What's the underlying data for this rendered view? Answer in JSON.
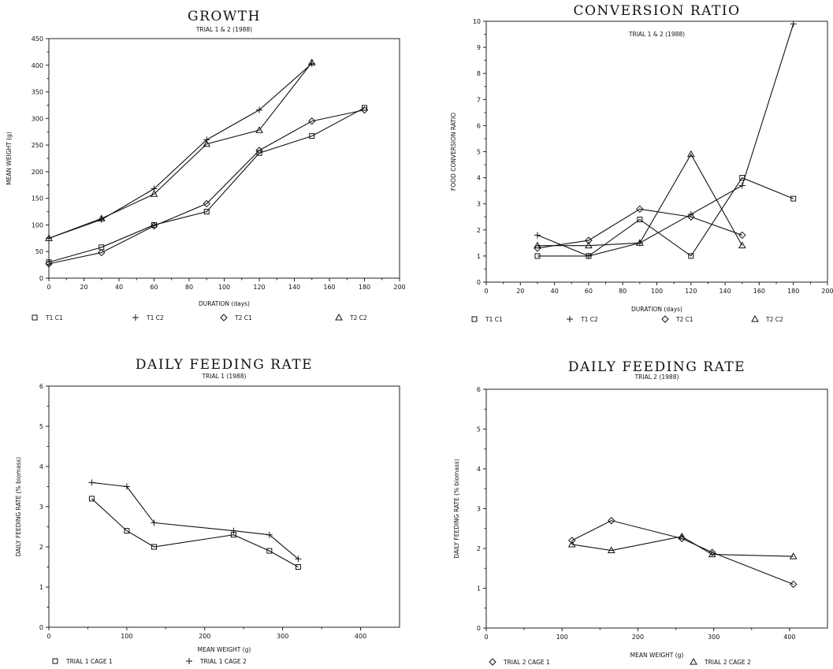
{
  "chart_data": [
    {
      "type": "line",
      "title": "GROWTH",
      "subtitle": "TRIAL 1 & 2 (1988)",
      "xlabel": "DURATION (days)",
      "ylabel": "MEAN WEIGHT (g)",
      "xlim": [
        0,
        200
      ],
      "ylim": [
        0,
        450
      ],
      "xticks": [
        0,
        20,
        40,
        60,
        80,
        100,
        120,
        140,
        160,
        180,
        200
      ],
      "yticks": [
        0,
        50,
        100,
        150,
        200,
        250,
        300,
        350,
        400,
        450
      ],
      "series": [
        {
          "name": "T1 C1",
          "marker": "□",
          "x": [
            0,
            30,
            60,
            90,
            120,
            150,
            180
          ],
          "y": [
            30,
            58,
            100,
            125,
            235,
            267,
            320
          ]
        },
        {
          "name": "T1 C2",
          "marker": "+",
          "x": [
            0,
            30,
            60,
            90,
            120,
            150
          ],
          "y": [
            75,
            110,
            168,
            260,
            316,
            403
          ]
        },
        {
          "name": "T2 C1",
          "marker": "◇",
          "x": [
            0,
            30,
            60,
            90,
            120,
            150,
            180
          ],
          "y": [
            27,
            48,
            98,
            140,
            240,
            295,
            316
          ]
        },
        {
          "name": "T2 C2",
          "marker": "△",
          "x": [
            0,
            30,
            60,
            90,
            120,
            150
          ],
          "y": [
            75,
            112,
            158,
            252,
            278,
            405
          ]
        }
      ]
    },
    {
      "type": "line",
      "title": "CONVERSION RATIO",
      "subtitle": "TRIAL 1 & 2 (1988)",
      "xlabel": "DURATION (days)",
      "ylabel": "FOOD CONVERSION RATIO",
      "xlim": [
        0,
        200
      ],
      "ylim": [
        0,
        10
      ],
      "xticks": [
        0,
        20,
        40,
        60,
        80,
        100,
        120,
        140,
        160,
        180,
        200
      ],
      "yticks": [
        0,
        1,
        2,
        3,
        4,
        5,
        6,
        7,
        8,
        9,
        10
      ],
      "series": [
        {
          "name": "T1 C1",
          "marker": "□",
          "x": [
            30,
            60,
            90,
            120,
            150,
            180
          ],
          "y": [
            1.0,
            1.0,
            2.4,
            1.0,
            4.0,
            3.2
          ]
        },
        {
          "name": "T1 C2",
          "marker": "+",
          "x": [
            30,
            60,
            90,
            120,
            150,
            180
          ],
          "y": [
            1.8,
            1.0,
            1.5,
            2.6,
            3.7,
            9.9
          ]
        },
        {
          "name": "T2 C1",
          "marker": "◇",
          "x": [
            30,
            60,
            90,
            120,
            150
          ],
          "y": [
            1.3,
            1.6,
            2.8,
            2.5,
            1.8
          ]
        },
        {
          "name": "T2 C2",
          "marker": "△",
          "x": [
            30,
            60,
            90,
            120,
            150
          ],
          "y": [
            1.4,
            1.4,
            1.5,
            4.9,
            1.4
          ]
        }
      ]
    },
    {
      "type": "line",
      "title": "DAILY FEEDING RATE",
      "subtitle": "TRIAL 1 (1988)",
      "xlabel": "MEAN WEIGHT (g)",
      "ylabel": "DAILY FEEDING RATE (% biomass)",
      "xlim": [
        0,
        450
      ],
      "ylim": [
        0,
        6
      ],
      "xticks": [
        0,
        100,
        200,
        300,
        400
      ],
      "yticks": [
        0,
        1,
        2,
        3,
        4,
        5,
        6
      ],
      "series": [
        {
          "name": "TRIAL 1 CAGE 1",
          "marker": "□",
          "x": [
            55,
            100,
            135,
            237,
            283,
            320
          ],
          "y": [
            3.2,
            2.4,
            2.0,
            2.3,
            1.9,
            1.5
          ]
        },
        {
          "name": "TRIAL 1 CAGE 2",
          "marker": "+",
          "x": [
            55,
            100,
            135,
            237,
            283,
            320
          ],
          "y": [
            3.6,
            3.5,
            2.6,
            2.4,
            2.3,
            1.7
          ]
        }
      ]
    },
    {
      "type": "line",
      "title": "DAILY FEEDING RATE",
      "subtitle": "TRIAL 2 (1988)",
      "xlabel": "MEAN WEIGHT (g)",
      "ylabel": "DAILY FEEDING RATE (% biomass)",
      "xlim": [
        0,
        450
      ],
      "ylim": [
        0,
        6
      ],
      "xticks": [
        0,
        100,
        200,
        300,
        400
      ],
      "yticks": [
        0,
        1,
        2,
        3,
        4,
        5,
        6
      ],
      "series": [
        {
          "name": "TRIAL 2 CAGE 1",
          "marker": "◇",
          "x": [
            113,
            165,
            258,
            298,
            405
          ],
          "y": [
            2.2,
            2.7,
            2.25,
            1.9,
            1.1
          ]
        },
        {
          "name": "TRIAL 2 CAGE 2",
          "marker": "△",
          "x": [
            113,
            165,
            258,
            298,
            405
          ],
          "y": [
            2.1,
            1.95,
            2.3,
            1.85,
            1.8
          ]
        }
      ]
    }
  ]
}
